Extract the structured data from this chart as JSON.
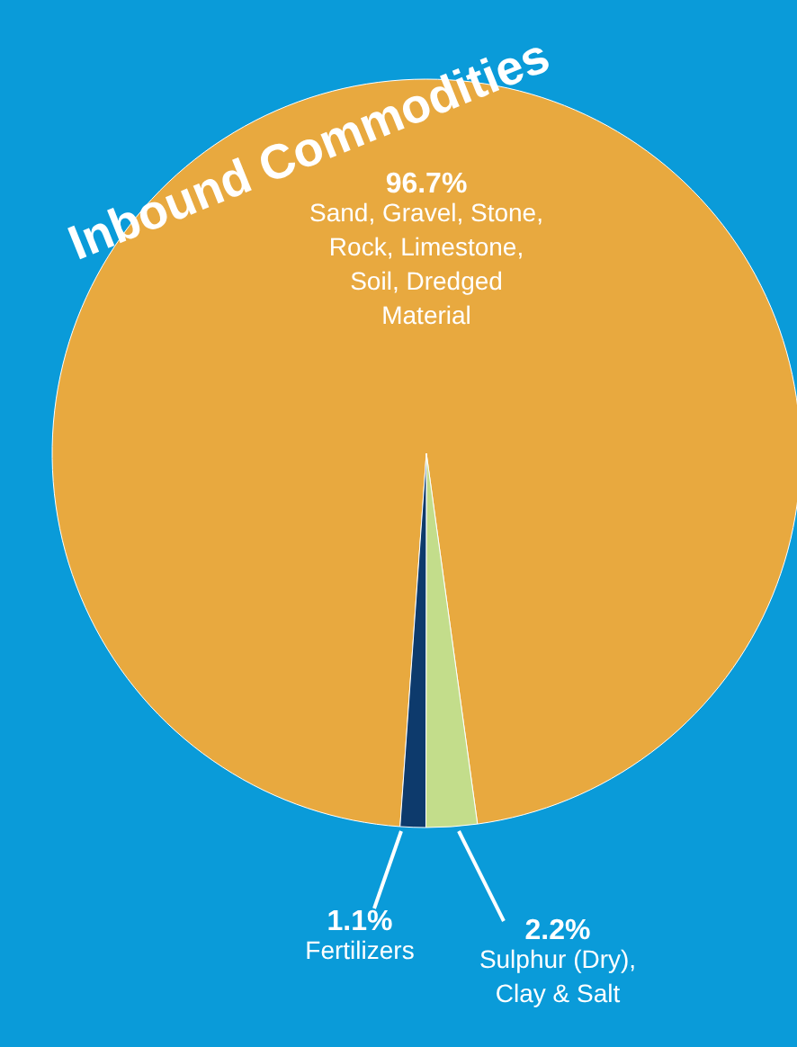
{
  "chart_data": {
    "type": "pie",
    "title": "Inbound Commodities",
    "categories": [
      "Sand, Gravel, Stone, Rock, Limestone, Soil, Dredged Material",
      "Sulphur (Dry), Clay & Salt",
      "Fertilizers"
    ],
    "values": [
      96.7,
      2.2,
      1.1
    ],
    "colors": [
      "#e8a93f",
      "#c3dd8b",
      "#0d3a6c"
    ],
    "value_labels": [
      "96.7%",
      "2.2%",
      "1.1%"
    ]
  }
}
